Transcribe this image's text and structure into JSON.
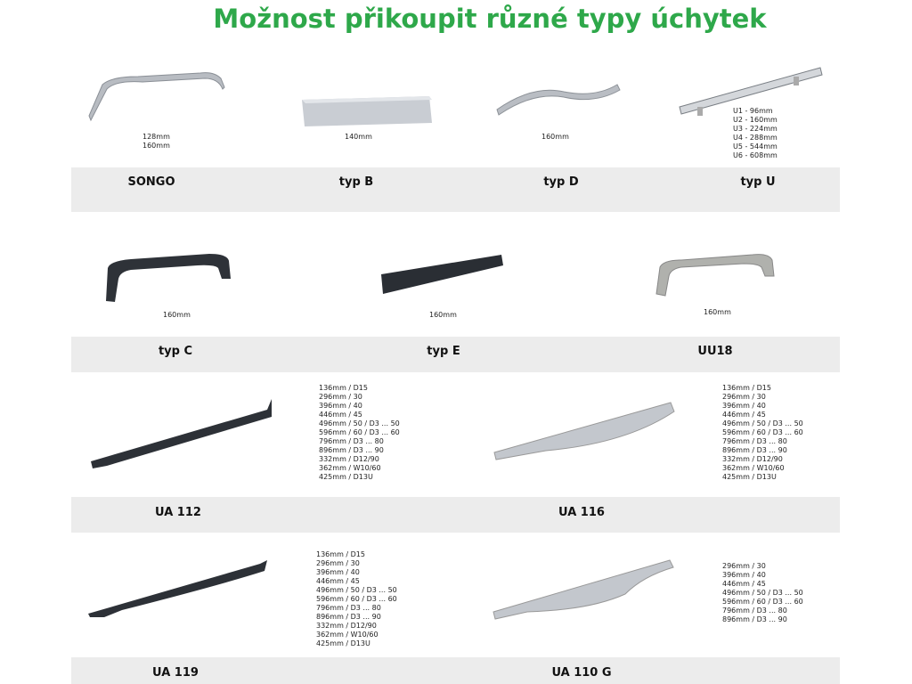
{
  "title": "Možnost přikoupit různé typy úchytek",
  "products": [
    {
      "name": "SONGO",
      "sizes": [
        "128mm",
        "160mm"
      ],
      "color": "silver"
    },
    {
      "name": "typ B",
      "sizes": [
        "140mm"
      ],
      "color": "silver"
    },
    {
      "name": "typ D",
      "sizes": [
        "160mm"
      ],
      "color": "silver"
    },
    {
      "name": "typ U",
      "sizes": [
        "U1 - 96mm",
        "U2 - 160mm",
        "U3 - 224mm",
        "U4 - 288mm",
        "U5 - 544mm",
        "U6 - 608mm"
      ],
      "color": "chrome"
    },
    {
      "name": "typ C",
      "sizes": [
        "160mm"
      ],
      "color": "black"
    },
    {
      "name": "typ E",
      "sizes": [
        "160mm"
      ],
      "color": "black"
    },
    {
      "name": "UU18",
      "sizes": [
        "160mm"
      ],
      "color": "brushed steel"
    },
    {
      "name": "UA 112",
      "sizes": [
        "136mm / D15",
        "296mm / 30",
        "396mm / 40",
        "446mm / 45",
        "496mm / 50 / D3 ... 50",
        "596mm / 60 / D3 ... 60",
        "796mm / D3 ... 80",
        "896mm / D3 ... 90",
        "332mm / D12/90",
        "362mm / W10/60",
        "425mm / D13U"
      ],
      "color": "black"
    },
    {
      "name": "UA 116",
      "sizes": [
        "136mm / D15",
        "296mm / 30",
        "396mm / 40",
        "446mm / 45",
        "496mm / 50 / D3 ... 50",
        "596mm / 60 / D3 ... 60",
        "796mm / D3 ... 80",
        "896mm / D3 ... 90",
        "332mm / D12/90",
        "362mm / W10/60",
        "425mm / D13U"
      ],
      "color": "silver"
    },
    {
      "name": "UA 119",
      "sizes": [
        "136mm / D15",
        "296mm / 30",
        "396mm / 40",
        "446mm / 45",
        "496mm / 50 / D3 ... 50",
        "596mm / 60 / D3 ... 60",
        "796mm / D3 ... 80",
        "896mm / D3 ... 90",
        "332mm / D12/90",
        "362mm / W10/60",
        "425mm / D13U"
      ],
      "color": "black"
    },
    {
      "name": "UA 110 G",
      "sizes": [
        "296mm / 30",
        "396mm / 40",
        "446mm / 45",
        "496mm / 50 / D3 ... 50",
        "596mm / 60 / D3 ... 60",
        "796mm / D3 ... 80",
        "896mm / D3 ... 90"
      ],
      "color": "silver"
    }
  ]
}
